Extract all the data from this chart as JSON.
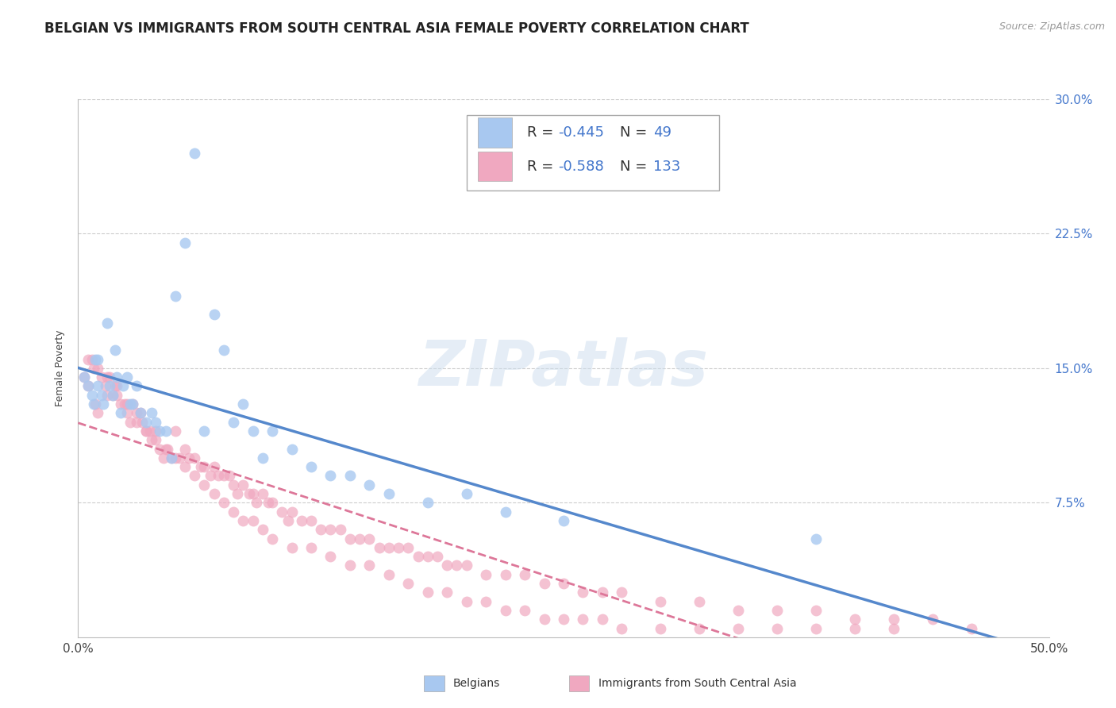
{
  "title": "BELGIAN VS IMMIGRANTS FROM SOUTH CENTRAL ASIA FEMALE POVERTY CORRELATION CHART",
  "source": "Source: ZipAtlas.com",
  "ylabel": "Female Poverty",
  "watermark": "ZIPatlas",
  "xlim": [
    0.0,
    0.5
  ],
  "ylim": [
    0.0,
    0.3
  ],
  "xticks": [
    0.0,
    0.1,
    0.2,
    0.3,
    0.4,
    0.5
  ],
  "xticklabels": [
    "0.0%",
    "",
    "",
    "",
    "",
    "50.0%"
  ],
  "yticks": [
    0.0,
    0.075,
    0.15,
    0.225,
    0.3
  ],
  "yticklabels_right": [
    "",
    "7.5%",
    "15.0%",
    "22.5%",
    "30.0%"
  ],
  "legend_r1": "-0.445",
  "legend_n1": "49",
  "legend_r2": "-0.588",
  "legend_n2": "133",
  "color_belgian": "#a8c8f0",
  "color_immigrant": "#f0a8c0",
  "color_line_belgian": "#5588cc",
  "color_line_immigrant": "#dd7799",
  "color_axis_label": "#4477cc",
  "grid_color": "#cccccc",
  "belgians_x": [
    0.003,
    0.005,
    0.007,
    0.008,
    0.009,
    0.01,
    0.01,
    0.012,
    0.013,
    0.015,
    0.016,
    0.018,
    0.019,
    0.02,
    0.022,
    0.023,
    0.025,
    0.027,
    0.028,
    0.03,
    0.032,
    0.035,
    0.038,
    0.04,
    0.042,
    0.045,
    0.048,
    0.05,
    0.055,
    0.06,
    0.065,
    0.07,
    0.075,
    0.08,
    0.085,
    0.09,
    0.095,
    0.1,
    0.11,
    0.12,
    0.13,
    0.14,
    0.15,
    0.16,
    0.18,
    0.2,
    0.22,
    0.25,
    0.38
  ],
  "belgians_y": [
    0.145,
    0.14,
    0.135,
    0.13,
    0.155,
    0.14,
    0.155,
    0.135,
    0.13,
    0.175,
    0.14,
    0.135,
    0.16,
    0.145,
    0.125,
    0.14,
    0.145,
    0.13,
    0.13,
    0.14,
    0.125,
    0.12,
    0.125,
    0.12,
    0.115,
    0.115,
    0.1,
    0.19,
    0.22,
    0.27,
    0.115,
    0.18,
    0.16,
    0.12,
    0.13,
    0.115,
    0.1,
    0.115,
    0.105,
    0.095,
    0.09,
    0.09,
    0.085,
    0.08,
    0.075,
    0.08,
    0.07,
    0.065,
    0.055
  ],
  "immigrants_x": [
    0.003,
    0.005,
    0.007,
    0.008,
    0.009,
    0.01,
    0.012,
    0.014,
    0.015,
    0.016,
    0.018,
    0.019,
    0.02,
    0.022,
    0.024,
    0.025,
    0.027,
    0.028,
    0.03,
    0.032,
    0.033,
    0.035,
    0.037,
    0.038,
    0.04,
    0.042,
    0.044,
    0.046,
    0.048,
    0.05,
    0.052,
    0.055,
    0.057,
    0.06,
    0.063,
    0.065,
    0.068,
    0.07,
    0.072,
    0.075,
    0.078,
    0.08,
    0.082,
    0.085,
    0.088,
    0.09,
    0.092,
    0.095,
    0.098,
    0.1,
    0.105,
    0.108,
    0.11,
    0.115,
    0.12,
    0.125,
    0.13,
    0.135,
    0.14,
    0.145,
    0.15,
    0.155,
    0.16,
    0.165,
    0.17,
    0.175,
    0.18,
    0.185,
    0.19,
    0.195,
    0.2,
    0.21,
    0.22,
    0.23,
    0.24,
    0.25,
    0.26,
    0.27,
    0.28,
    0.3,
    0.32,
    0.34,
    0.36,
    0.38,
    0.4,
    0.42,
    0.44,
    0.46,
    0.005,
    0.01,
    0.015,
    0.02,
    0.025,
    0.03,
    0.035,
    0.04,
    0.045,
    0.05,
    0.055,
    0.06,
    0.065,
    0.07,
    0.075,
    0.08,
    0.085,
    0.09,
    0.095,
    0.1,
    0.11,
    0.12,
    0.13,
    0.14,
    0.15,
    0.16,
    0.17,
    0.18,
    0.19,
    0.2,
    0.21,
    0.22,
    0.23,
    0.24,
    0.25,
    0.26,
    0.27,
    0.28,
    0.3,
    0.32,
    0.34,
    0.36,
    0.38,
    0.4,
    0.42
  ],
  "immigrants_y": [
    0.145,
    0.14,
    0.155,
    0.15,
    0.13,
    0.125,
    0.145,
    0.14,
    0.135,
    0.145,
    0.135,
    0.14,
    0.14,
    0.13,
    0.13,
    0.125,
    0.12,
    0.13,
    0.125,
    0.125,
    0.12,
    0.115,
    0.115,
    0.11,
    0.115,
    0.105,
    0.1,
    0.105,
    0.1,
    0.115,
    0.1,
    0.105,
    0.1,
    0.1,
    0.095,
    0.095,
    0.09,
    0.095,
    0.09,
    0.09,
    0.09,
    0.085,
    0.08,
    0.085,
    0.08,
    0.08,
    0.075,
    0.08,
    0.075,
    0.075,
    0.07,
    0.065,
    0.07,
    0.065,
    0.065,
    0.06,
    0.06,
    0.06,
    0.055,
    0.055,
    0.055,
    0.05,
    0.05,
    0.05,
    0.05,
    0.045,
    0.045,
    0.045,
    0.04,
    0.04,
    0.04,
    0.035,
    0.035,
    0.035,
    0.03,
    0.03,
    0.025,
    0.025,
    0.025,
    0.02,
    0.02,
    0.015,
    0.015,
    0.015,
    0.01,
    0.01,
    0.01,
    0.005,
    0.155,
    0.15,
    0.145,
    0.135,
    0.13,
    0.12,
    0.115,
    0.11,
    0.105,
    0.1,
    0.095,
    0.09,
    0.085,
    0.08,
    0.075,
    0.07,
    0.065,
    0.065,
    0.06,
    0.055,
    0.05,
    0.05,
    0.045,
    0.04,
    0.04,
    0.035,
    0.03,
    0.025,
    0.025,
    0.02,
    0.02,
    0.015,
    0.015,
    0.01,
    0.01,
    0.01,
    0.01,
    0.005,
    0.005,
    0.005,
    0.005,
    0.005,
    0.005,
    0.005,
    0.005
  ],
  "title_fontsize": 12,
  "axis_label_fontsize": 9,
  "tick_fontsize": 11,
  "legend_fontsize": 13
}
